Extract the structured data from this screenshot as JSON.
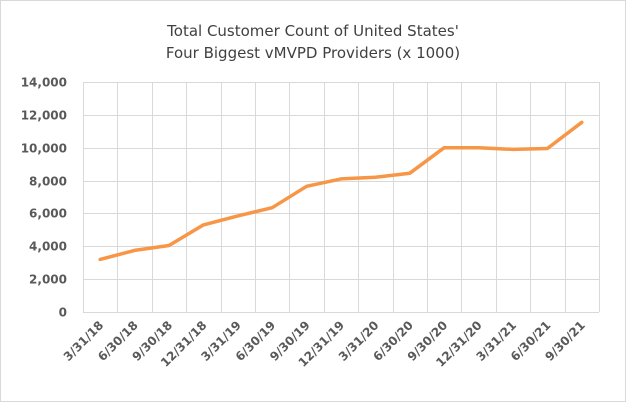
{
  "chart_data": {
    "type": "line",
    "title": [
      "Total Customer Count of United States'",
      "Four Biggest vMVPD Providers (x 1000)"
    ],
    "xlabel": "",
    "ylabel": "",
    "categories": [
      "3/31/18",
      "6/30/18",
      "9/30/18",
      "12/31/18",
      "3/31/19",
      "6/30/19",
      "9/30/19",
      "12/31/19",
      "3/31/20",
      "6/30/20",
      "9/30/20",
      "12/31/20",
      "3/31/21",
      "6/30/21",
      "9/30/21"
    ],
    "series": [
      {
        "values": [
          3200,
          3750,
          4050,
          5300,
          5850,
          6350,
          7650,
          8100,
          8200,
          8450,
          10000,
          10000,
          9900,
          9950,
          11550
        ],
        "color": "#f79646"
      }
    ],
    "ylim": [
      0,
      14000
    ],
    "yticks": [
      0,
      2000,
      4000,
      6000,
      8000,
      10000,
      12000,
      14000
    ],
    "ytick_labels": [
      "0",
      "2,000",
      "4,000",
      "6,000",
      "8,000",
      "10,000",
      "12,000",
      "14,000"
    ],
    "grid": true,
    "legend": "none",
    "colors": {
      "grid": "#d9d9d9",
      "text": "#595959",
      "title": "#404040"
    }
  }
}
